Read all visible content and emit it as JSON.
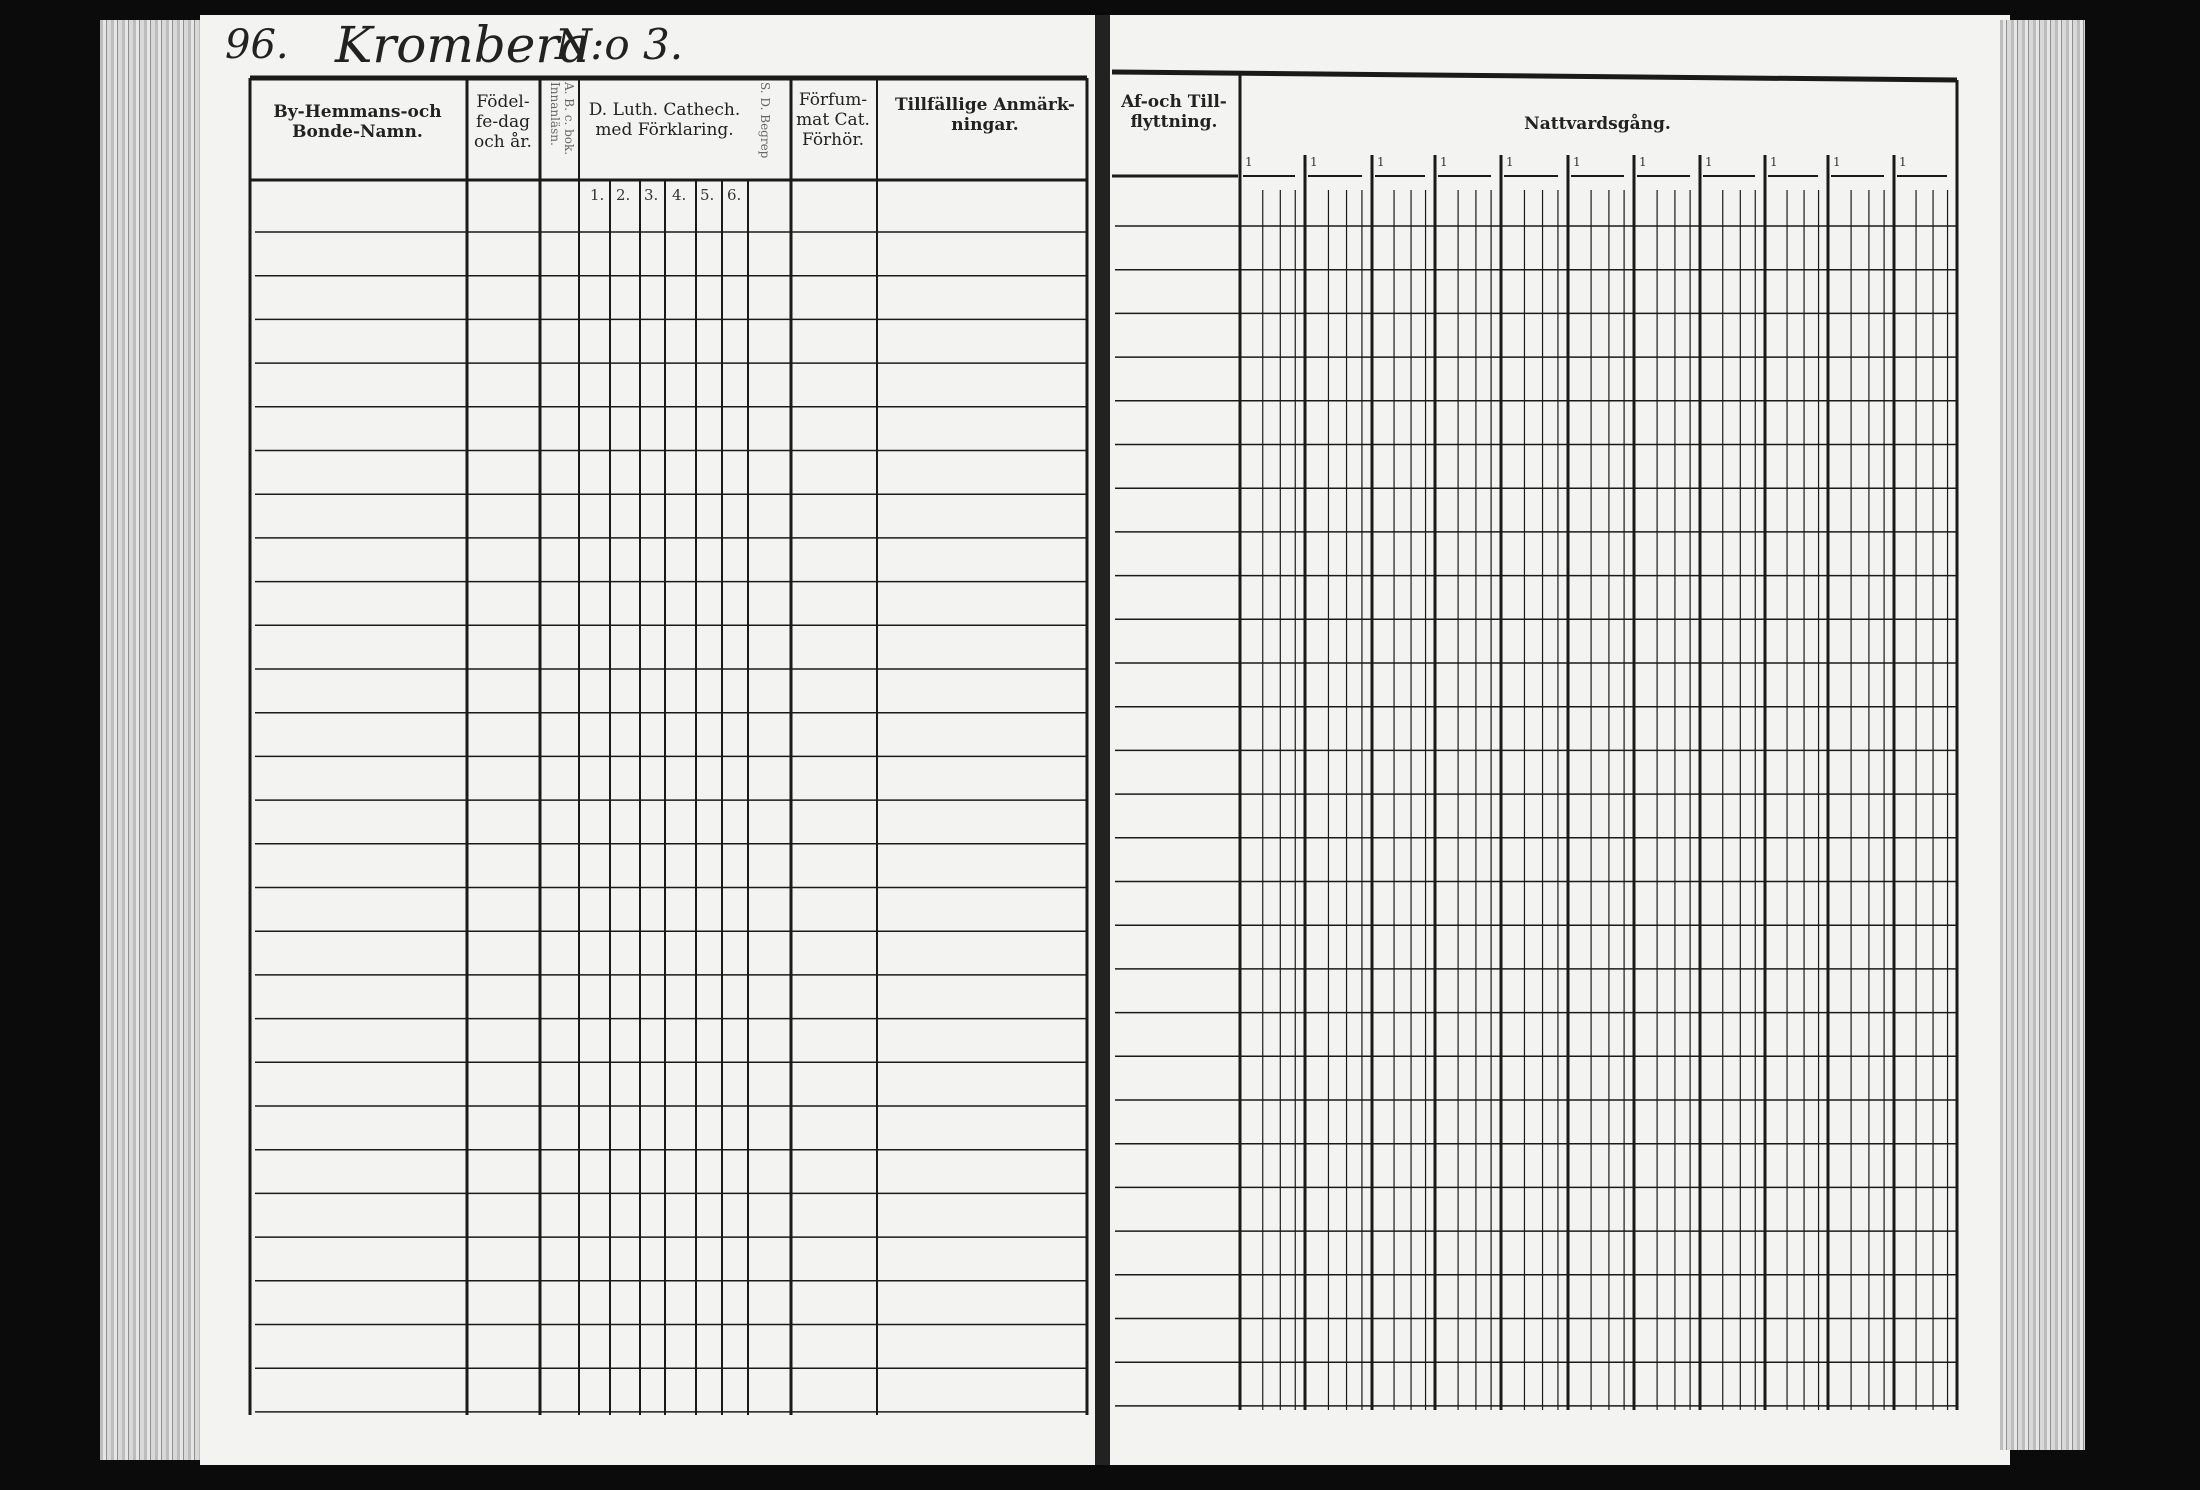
{
  "left_page": {
    "page_number": "96.",
    "handwritten_title": "Krombera",
    "handwritten_number": "N:o 3.",
    "columns": [
      "By-Hemmans-och Bonde-Namn.",
      "Födel-fe-dag och år.",
      "A. B. c. bok. Innanläsn.",
      "D. Luth. Cathech. med Förklaring.",
      "S. D. Begrep",
      "Förfum-mat Cat. Förhör.",
      "Tillfällige Anmärk-ningar."
    ],
    "catechism_subcolumns": [
      "1.",
      "2.",
      "3.",
      "4.",
      "5.",
      "6."
    ]
  },
  "right_page": {
    "columns": [
      "Af-och Till-flyttning.",
      "Nattvardsgång."
    ],
    "nattvard_group_marks": [
      "1",
      "1",
      "1",
      "1",
      "1",
      "1",
      "1",
      "1",
      "1",
      "1",
      "1"
    ]
  }
}
